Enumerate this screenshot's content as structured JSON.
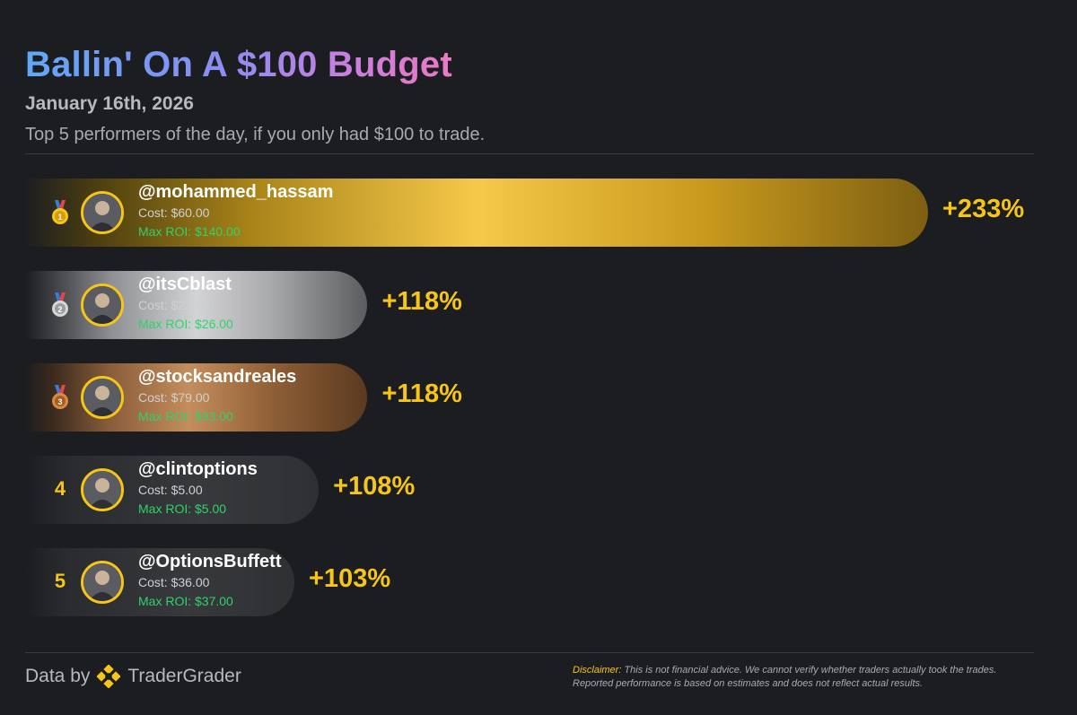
{
  "header": {
    "title": "Ballin' On A $100 Budget",
    "date": "January 16th, 2026",
    "subtitle": "Top 5 performers of the day, if you only had $100 to trade."
  },
  "chart_data": {
    "type": "bar",
    "orientation": "horizontal",
    "categories": [
      "@mohammed_hassam",
      "@itsCblast",
      "@stocksandreales",
      "@clintoptions",
      "@OptionsBuffett"
    ],
    "values": [
      233,
      118,
      118,
      108,
      103
    ],
    "value_format": "+{v}%",
    "entries": [
      {
        "rank": 1,
        "rank_display": "medal-gold",
        "handle": "@mohammed_hassam",
        "cost": "Cost: $60.00",
        "max_roi": "Max ROI: $140.00",
        "pct": 233,
        "pct_label": "+233%",
        "bar_style": "gold"
      },
      {
        "rank": 2,
        "rank_display": "medal-silver",
        "handle": "@itsCblast",
        "cost": "Cost: $22.00",
        "max_roi": "Max ROI: $26.00",
        "pct": 118,
        "pct_label": "+118%",
        "bar_style": "silver"
      },
      {
        "rank": 3,
        "rank_display": "medal-bronze",
        "handle": "@stocksandreales",
        "cost": "Cost: $79.00",
        "max_roi": "Max ROI: $93.00",
        "pct": 118,
        "pct_label": "+118%",
        "bar_style": "bronze"
      },
      {
        "rank": 4,
        "rank_display": "4",
        "handle": "@clintoptions",
        "cost": "Cost: $5.00",
        "max_roi": "Max ROI: $5.00",
        "pct": 108,
        "pct_label": "+108%",
        "bar_style": "dark"
      },
      {
        "rank": 5,
        "rank_display": "5",
        "handle": "@OptionsBuffett",
        "cost": "Cost: $36.00",
        "max_roi": "Max ROI: $37.00",
        "pct": 103,
        "pct_label": "+103%",
        "bar_style": "dark"
      }
    ]
  },
  "colors": {
    "accent_gold": "#f5c518",
    "roi_green": "#2ed46a",
    "background": "#1c1d21"
  },
  "footer": {
    "data_by": "Data by",
    "brand": "TraderGrader",
    "brand_icon": "tradergrader-logo-icon",
    "disclaimer_label": "Disclaimer:",
    "disclaimer_text": " This is not financial advice. We cannot verify whether traders actually took the trades. Reported performance is based on estimates and does not reflect actual results."
  }
}
